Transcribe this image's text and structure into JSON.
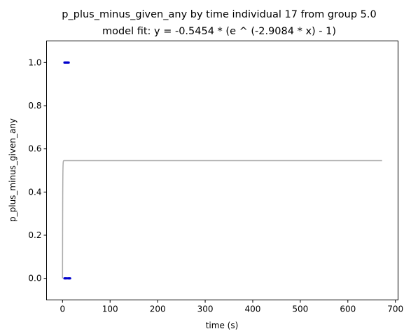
{
  "chart_data": {
    "type": "scatter",
    "title": "p_plus_minus_given_any by time individual 17 from group 5.0",
    "subtitle": "model fit: y = -0.5454 * (e ^ (-2.9084 * x) - 1)",
    "xlabel": "time (s)",
    "ylabel": "p_plus_minus_given_any",
    "xlim": [
      -33.6,
      705.6
    ],
    "ylim": [
      -0.1,
      1.1
    ],
    "xticks": [
      0,
      100,
      200,
      300,
      400,
      500,
      600,
      700
    ],
    "yticks": [
      0.0,
      0.2,
      0.4,
      0.6,
      0.8,
      1.0
    ],
    "xtick_labels": [
      "0",
      "100",
      "200",
      "300",
      "400",
      "500",
      "600",
      "700"
    ],
    "ytick_labels": [
      "0.0",
      "0.2",
      "0.4",
      "0.6",
      "0.8",
      "1.0"
    ],
    "grid": false,
    "points": {
      "color": "#0000cc",
      "x": [
        4,
        5,
        6,
        7,
        8,
        9,
        10,
        11,
        12,
        13,
        4,
        5,
        6,
        7,
        8,
        10,
        12,
        13,
        14,
        15,
        16
      ],
      "y": [
        1,
        1,
        1,
        1,
        1,
        1,
        1,
        1,
        1,
        1,
        0,
        0,
        0,
        0,
        0,
        0,
        0,
        0,
        0,
        0,
        0
      ]
    },
    "fit": {
      "color": "#aaaaaa",
      "a": -0.5454,
      "b": -2.9084,
      "x_range": [
        0,
        672
      ]
    }
  }
}
